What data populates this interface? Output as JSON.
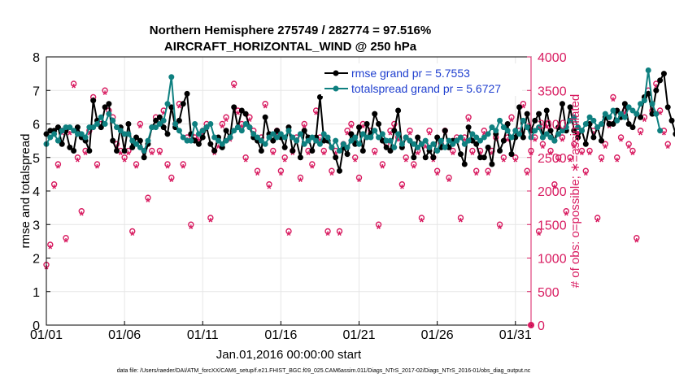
{
  "colors": {
    "rmse": "#000000",
    "spread": "#0f8080",
    "obs": "#d81b60",
    "legend_text": "#1f3fcf",
    "grid": "#e6e6e6"
  },
  "chart_data": {
    "type": "line",
    "title": "Northern Hemisphere 275749 / 282774 = 97.516%",
    "subtitle": "AIRCRAFT_HORIZONTAL_WIND @ 250 hPa",
    "xlabel": "Jan.01,2016 00:00:00 start",
    "ylabel": "rmse and totalspread",
    "y2label": "# of obs: o=possible; ∗=assimilated",
    "footer": "data file: /Users/raeder/DAI/ATM_forcXX/CAM6_setup/f.e21.FHIST_BGC.f09_025.CAM6assim.011/Diags_NTrS_2017-02/Diags_NTrS_2016-01/obs_diag_output.nc",
    "x_tick_labels": [
      "01/01",
      "01/06",
      "01/11",
      "01/16",
      "01/21",
      "01/26",
      "01/31"
    ],
    "x_tick_days": [
      0,
      5,
      10,
      15,
      20,
      25,
      30
    ],
    "xlim": [
      0,
      31
    ],
    "ylim": [
      0,
      8
    ],
    "y_ticks": [
      "0",
      "1",
      "2",
      "3",
      "4",
      "5",
      "6",
      "7",
      "8"
    ],
    "y2lim": [
      0,
      4000
    ],
    "y2_ticks": [
      "0",
      "500",
      "1000",
      "1500",
      "2000",
      "2500",
      "3000",
      "3500",
      "4000"
    ],
    "grid": true,
    "legend_position": "top-right",
    "series": [
      {
        "name": "rmse grand pr = 5.7553",
        "axis": "left",
        "x_step_days": 0.25,
        "values": [
          5.7,
          5.8,
          5.8,
          5.9,
          5.4,
          5.8,
          5.3,
          5.2,
          5.9,
          5.6,
          5.5,
          5.2,
          6.7,
          6.1,
          5.9,
          6.5,
          6.6,
          5.5,
          5.2,
          5.9,
          5.2,
          6.0,
          5.3,
          5.6,
          5.5,
          5.0,
          5.4,
          5.9,
          6.1,
          6.2,
          5.9,
          5.7,
          6.5,
          5.9,
          6.1,
          6.6,
          6.9,
          5.7,
          5.5,
          5.4,
          5.6,
          5.9,
          5.4,
          5.2,
          5.6,
          5.3,
          5.8,
          5.6,
          6.5,
          5.9,
          6.4,
          6.3,
          5.9,
          5.6,
          5.5,
          5.2,
          6.2,
          5.7,
          5.5,
          5.8,
          5.6,
          5.3,
          5.9,
          5.2,
          5.5,
          5.0,
          5.8,
          5.6,
          5.2,
          5.6,
          6.8,
          5.5,
          5.5,
          5.3,
          5.0,
          4.6,
          5.3,
          5.1,
          5.7,
          5.4,
          5.9,
          5.2,
          6.0,
          5.7,
          6.3,
          6.0,
          5.5,
          5.3,
          5.2,
          5.8,
          6.4,
          5.3,
          5.6,
          5.5,
          5.0,
          5.6,
          5.4,
          5.0,
          5.2,
          5.0,
          5.6,
          5.3,
          5.8,
          5.3,
          5.5,
          5.5,
          5.1,
          4.8,
          5.9,
          5.5,
          5.4,
          5.0,
          5.0,
          5.3,
          4.8,
          5.7,
          5.2,
          5.5,
          6.0,
          5.1,
          5.6,
          6.5,
          5.6,
          6.3,
          5.8,
          6.1,
          6.3,
          5.6,
          6.4,
          5.8,
          5.5,
          5.9,
          6.6,
          5.8,
          6.5,
          5.8,
          5.6,
          5.8,
          5.4,
          6.0,
          5.6,
          5.9,
          5.5,
          6.2,
          6.0,
          6.0,
          6.4,
          6.2,
          6.6,
          6.0,
          5.9,
          6.3,
          6.2,
          6.8,
          6.9,
          6.3,
          7.0,
          7.3,
          7.5,
          6.5,
          6.1,
          5.7
        ]
      },
      {
        "name": "totalspread grand pr = 5.6727",
        "axis": "left",
        "x_step_days": 0.25,
        "values": [
          5.4,
          5.6,
          5.7,
          5.5,
          5.8,
          5.9,
          5.9,
          5.8,
          5.7,
          5.7,
          5.6,
          5.9,
          5.9,
          6.0,
          6.2,
          6.0,
          6.3,
          6.1,
          5.9,
          5.8,
          5.7,
          5.7,
          5.5,
          5.4,
          5.3,
          5.2,
          5.5,
          5.9,
          5.9,
          6.0,
          6.1,
          6.6,
          7.4,
          6.0,
          5.8,
          5.6,
          5.5,
          5.5,
          6.0,
          5.7,
          5.8,
          5.9,
          6.0,
          5.6,
          5.5,
          5.4,
          5.5,
          5.6,
          5.8,
          5.9,
          5.8,
          6.0,
          5.9,
          5.7,
          5.6,
          5.5,
          5.4,
          5.6,
          5.7,
          5.6,
          5.7,
          5.6,
          5.8,
          5.6,
          5.5,
          5.7,
          5.4,
          5.5,
          5.6,
          5.5,
          5.4,
          5.7,
          5.6,
          5.3,
          5.5,
          5.2,
          5.4,
          5.3,
          5.5,
          5.6,
          5.4,
          5.7,
          5.6,
          5.6,
          5.8,
          5.6,
          5.7,
          5.5,
          5.5,
          5.3,
          5.7,
          5.4,
          5.6,
          5.5,
          5.4,
          5.3,
          5.4,
          5.5,
          5.3,
          5.4,
          5.2,
          5.5,
          5.3,
          5.5,
          5.4,
          5.5,
          5.6,
          5.4,
          5.5,
          5.7,
          5.6,
          5.5,
          5.6,
          5.7,
          5.9,
          5.8,
          6.1,
          5.9,
          5.8,
          5.6,
          5.8,
          5.7,
          6.1,
          5.9,
          5.6,
          5.8,
          5.9,
          5.6,
          5.7,
          5.6,
          5.5,
          5.7,
          5.8,
          5.9,
          6.1,
          6.2,
          5.9,
          5.8,
          6.0,
          6.2,
          6.1,
          5.9,
          6.0,
          6.3,
          6.2,
          6.4,
          6.1,
          6.3,
          6.2,
          6.5,
          6.4,
          6.3,
          6.6,
          6.7,
          7.6,
          6.6,
          6.3,
          5.8
        ]
      },
      {
        "name": "obs possible",
        "axis": "right",
        "marker": "o",
        "x_step_days": 0.25,
        "values": [
          900,
          1200,
          2100,
          2400,
          2900,
          1300,
          2900,
          3600,
          2500,
          1700,
          2600,
          2900,
          3400,
          2400,
          3000,
          3500,
          3200,
          3100,
          2700,
          2600,
          2500,
          2600,
          1400,
          2400,
          3000,
          2600,
          1900,
          2600,
          3100,
          2600,
          3200,
          2400,
          2200,
          3000,
          3300,
          2400,
          2800,
          1500,
          2800,
          2800,
          2900,
          3000,
          1600,
          2600,
          2700,
          3000,
          3100,
          2800,
          3600,
          3200,
          3000,
          2500,
          3100,
          2900,
          2300,
          2800,
          3300,
          2100,
          2600,
          2900,
          2300,
          2500,
          1400,
          2600,
          2800,
          2200,
          3000,
          2600,
          2400,
          3200,
          2800,
          2600,
          1400,
          2300,
          2600,
          1400,
          2700,
          2900,
          3000,
          2500,
          2200,
          3000,
          3500,
          2900,
          2600,
          1500,
          2400,
          2700,
          2900,
          3000,
          2800,
          2100,
          2500,
          2900,
          2400,
          2600,
          1600,
          2700,
          2900,
          2500,
          2300,
          2700,
          2900,
          2200,
          2600,
          2800,
          1600,
          2800,
          3100,
          2600,
          2300,
          2600,
          2900,
          2300,
          2600,
          2800,
          1500,
          2500,
          2800,
          3100,
          2500,
          2900,
          3300,
          2300,
          2600,
          2800,
          1400,
          2700,
          3000,
          2600,
          2100,
          2500,
          2800,
          1700,
          2500,
          2700,
          2900,
          2600,
          2300,
          2600,
          2900,
          1600,
          2500,
          2700,
          3000,
          3400,
          2500,
          2800,
          3200,
          2700,
          2600,
          1300,
          2900,
          3100,
          3500,
          3200,
          3600,
          3200,
          2900,
          2700
        ]
      },
      {
        "name": "obs assimilated",
        "axis": "right",
        "marker": "*",
        "x_step_days": 0.25,
        "values": [
          850,
          1150,
          2050,
          2350,
          2850,
          1250,
          2850,
          3550,
          2450,
          1650,
          2550,
          2850,
          3350,
          2350,
          2950,
          3450,
          3150,
          3050,
          2650,
          2550,
          2450,
          2550,
          1350,
          2350,
          2950,
          2550,
          1850,
          2550,
          3050,
          2550,
          3150,
          2350,
          2150,
          2950,
          3250,
          2350,
          2750,
          1450,
          2750,
          2750,
          2850,
          2950,
          1550,
          2550,
          2650,
          2950,
          3050,
          2750,
          3550,
          3150,
          2950,
          2450,
          3050,
          2850,
          2250,
          2750,
          3250,
          2050,
          2550,
          2850,
          2250,
          2450,
          1350,
          2550,
          2750,
          2150,
          2950,
          2550,
          2350,
          3150,
          2750,
          2550,
          1350,
          2250,
          2550,
          1350,
          2650,
          2850,
          2950,
          2450,
          2150,
          2950,
          3450,
          2850,
          2550,
          1450,
          2350,
          2650,
          2850,
          2950,
          2750,
          2050,
          2450,
          2850,
          2350,
          2550,
          1550,
          2650,
          2850,
          2450,
          2250,
          2650,
          2850,
          2150,
          2550,
          2750,
          1550,
          2750,
          3050,
          2550,
          2250,
          2550,
          2850,
          2250,
          2550,
          2750,
          1450,
          2450,
          2750,
          3050,
          2450,
          2850,
          3250,
          2250,
          2550,
          2750,
          1350,
          2650,
          2950,
          2550,
          2050,
          2450,
          2750,
          1650,
          2450,
          2650,
          2850,
          2550,
          2250,
          2550,
          2850,
          1550,
          2450,
          2650,
          2950,
          3350,
          2450,
          2750,
          3150,
          2650,
          2550,
          1250,
          2850,
          3050,
          3450,
          3150,
          3550,
          3150,
          2850,
          2650
        ]
      }
    ]
  }
}
